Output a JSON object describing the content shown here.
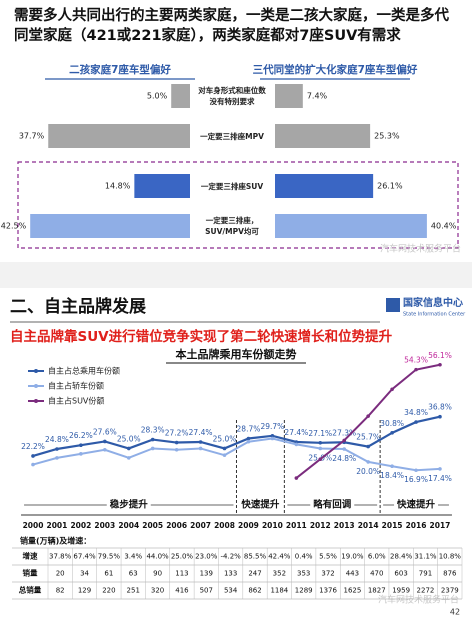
{
  "section_title": "二、自主品牌发展",
  "logo": {
    "name": "国家信息中心",
    "subtitle": "State Information Center"
  },
  "headline": "自主品牌靠SUV进行错位竞争实现了第二轮快速增长和位势提升",
  "watermark": "汽车网技术服务平台",
  "page_number": "42",
  "table": {
    "title": "销量(万辆)及增速：",
    "rows": [
      [
        "增速",
        "37.8%",
        "67.4%",
        "79.5%",
        "3.4%",
        "44.0%",
        "25.0%",
        "23.0%",
        "-4.2%",
        "85.5%",
        "42.4%",
        "0.4%",
        "5.5%",
        "19.0%",
        "6.0%",
        "28.4%",
        "31.1%",
        "10.8%"
      ],
      [
        "销量",
        "20",
        "34",
        "61",
        "63",
        "90",
        "113",
        "139",
        "133",
        "247",
        "352",
        "353",
        "372",
        "443",
        "470",
        "603",
        "791",
        "876"
      ],
      [
        "总销量",
        "82",
        "129",
        "220",
        "251",
        "320",
        "416",
        "507",
        "534",
        "862",
        "1184",
        "1289",
        "1376",
        "1625",
        "1827",
        "1959",
        "2272",
        "2379"
      ]
    ]
  },
  "chart_data": [
    {
      "type": "butterfly",
      "title": "需要多人共同出行的主要两类家庭，一类是二孩大家庭，一类是多代同堂家庭（421或221家庭），两类家庭都对7座SUV有需求",
      "categories": [
        "对车身形式和座位数\n没有特别要求",
        "一定要三排座MPV",
        "一定要三排座SUV",
        "一定要三排座，\nSUV/MPV均可"
      ],
      "colors": [
        "#a6a6a6",
        "#a6a6a6",
        "#3a66c4",
        "#8faee6"
      ],
      "series": [
        {
          "name": "二孩家庭7座车型偏好",
          "values": [
            5.0,
            37.7,
            14.8,
            42.5
          ],
          "value_labels": [
            "5.0%",
            "37.7%",
            "14.8%",
            "42.5%"
          ]
        },
        {
          "name": "三代同堂的扩大化家庭7座车型偏好",
          "values": [
            7.4,
            25.3,
            26.1,
            40.4
          ],
          "value_labels": [
            "7.4%",
            "25.3%",
            "26.1%",
            "40.4%"
          ]
        }
      ]
    },
    {
      "type": "line",
      "title": "本土品牌乘用车份额走势",
      "categories": [
        "2000",
        "2001",
        "2002",
        "2003",
        "2004",
        "2005",
        "2006",
        "2007",
        "2008",
        "2009",
        "2010",
        "2011",
        "2012",
        "2013",
        "2014",
        "2015",
        "2016",
        "2017"
      ],
      "phases": [
        "稳步提升",
        "快速提升",
        "略有回调",
        "快速提升"
      ],
      "series": [
        {
          "name": "自主占总乘用车份额",
          "color": "#2e5aa8",
          "values": [
            22.2,
            24.8,
            26.2,
            27.6,
            25.0,
            28.3,
            27.2,
            27.4,
            25.0,
            28.7,
            29.7,
            27.4,
            27.1,
            27.3,
            25.7,
            30.8,
            34.8,
            36.8
          ],
          "value_labels": [
            "22.2%",
            "24.8%",
            "26.2%",
            "27.6%",
            "25.0%",
            "28.3%",
            "27.2%",
            "27.4%",
            "25.0%",
            "28.7%",
            "29.7%",
            "27.4%",
            "27.1%",
            "27.3%",
            "25.7%",
            "30.8%",
            "34.8%",
            "36.8%"
          ]
        },
        {
          "name": "自主占轿车份额",
          "color": "#8faee6",
          "values": [
            19.0,
            21.5,
            23.0,
            24.5,
            21.5,
            25.0,
            24.5,
            25.0,
            22.5,
            27.5,
            28.7,
            26.5,
            25.0,
            24.8,
            20.0,
            18.4,
            16.9,
            17.4
          ],
          "value_labels": [
            null,
            null,
            null,
            null,
            null,
            null,
            null,
            null,
            null,
            null,
            null,
            null,
            "25.0%",
            "24.8%",
            "20.0%",
            "18.4%",
            "16.9%",
            "17.4%"
          ]
        },
        {
          "name": "自主占SUV份额",
          "color": "#7b2c7e",
          "values": [
            null,
            null,
            null,
            null,
            null,
            null,
            null,
            null,
            null,
            null,
            null,
            14.0,
            21.0,
            28.0,
            37.0,
            47.0,
            54.3,
            56.1
          ],
          "value_labels": [
            null,
            null,
            null,
            null,
            null,
            null,
            null,
            null,
            null,
            null,
            null,
            null,
            null,
            null,
            null,
            null,
            "54.3%",
            "56.1%"
          ]
        }
      ]
    }
  ]
}
